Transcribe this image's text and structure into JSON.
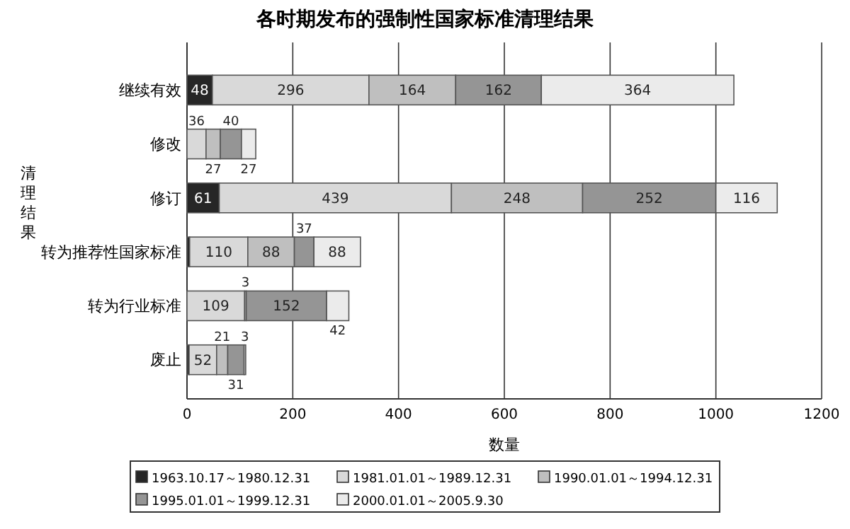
{
  "chart_data": {
    "type": "bar",
    "orientation": "horizontal",
    "stacked": true,
    "title": "各时期发布的强制性国家标准清理结果",
    "xlabel": "数量",
    "ylabel": "清理结果",
    "categories": [
      "继续有效",
      "修改",
      "修订",
      "转为推荐性国家标准",
      "转为行业标准",
      "废止"
    ],
    "xlim": [
      0,
      1200
    ],
    "xticks": [
      0,
      200,
      400,
      600,
      800,
      1000,
      1200
    ],
    "grid": "x",
    "legend": "bottom",
    "series": [
      {
        "name": "1963.10.17～1980.12.31",
        "color": "#262626",
        "values": [
          48,
          null,
          61,
          5,
          null,
          4
        ],
        "value_labels": [
          "48",
          null,
          "61",
          null,
          null,
          null
        ]
      },
      {
        "name": "1981.01.01～1989.12.31",
        "color": "#d9d9d9",
        "values": [
          296,
          36,
          439,
          110,
          109,
          52
        ],
        "value_labels": [
          "296",
          "36",
          "439",
          "110",
          "109",
          "52"
        ]
      },
      {
        "name": "1990.01.01～1994.12.31",
        "color": "#bfbfbf",
        "values": [
          164,
          27,
          248,
          88,
          3,
          21
        ],
        "value_labels": [
          "164",
          "27",
          "248",
          "88",
          "3",
          "21"
        ]
      },
      {
        "name": "1995.01.01～1999.12.31",
        "color": "#959595",
        "values": [
          162,
          40,
          252,
          37,
          152,
          31
        ],
        "value_labels": [
          "162",
          "40",
          "252",
          "37",
          "152",
          "31"
        ]
      },
      {
        "name": "2000.01.01～2005.9.30",
        "color": "#ebebeb",
        "values": [
          364,
          27,
          116,
          88,
          42,
          3
        ],
        "value_labels": [
          "364",
          "27",
          "116",
          "88",
          "42",
          "3"
        ]
      }
    ]
  }
}
